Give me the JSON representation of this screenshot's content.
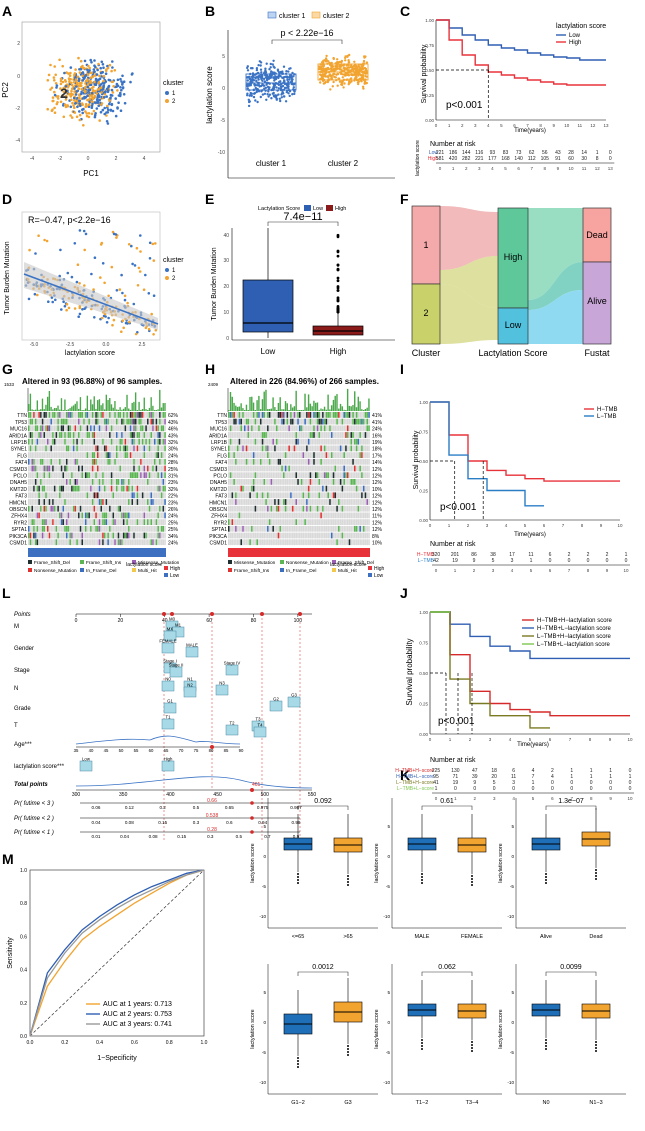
{
  "figure_title": "Lactylation score figure panels A–M",
  "panel_labels": [
    "A",
    "B",
    "C",
    "D",
    "E",
    "F",
    "G",
    "H",
    "I",
    "J",
    "K",
    "L",
    "M"
  ],
  "colors": {
    "c1": "#3b73c4",
    "c2": "#f2a431",
    "low": "#2f5fb3",
    "high": "#e8323a",
    "red": "#d62a2a",
    "dark_red": "#8b1a1a",
    "teal": "#2a9c8c",
    "olive": "#7a7a22",
    "green": "#7ec850",
    "purple": "#b48ac8",
    "pink": "#eda3a3"
  },
  "panelA": {
    "xlabel": "PC1",
    "ylabel": "PC2",
    "legend_title": "cluster",
    "legend": [
      "1",
      "2"
    ],
    "xticks": [
      "-4",
      "-2",
      "0",
      "2",
      "4"
    ],
    "yticks": [
      "2",
      "0",
      "-2",
      "-4"
    ],
    "center_label": "2"
  },
  "panelB": {
    "legend": [
      "cluster 1",
      "cluster 2"
    ],
    "pvalue": "p < 2.22e−16",
    "ylabel": "lactylation score",
    "categories": [
      "cluster 1",
      "cluster 2"
    ],
    "yticks": [
      "5",
      "0",
      "-5",
      "-10"
    ]
  },
  "panelC": {
    "legend_title": "lactylation score",
    "legend": [
      "Low",
      "High"
    ],
    "ylabel": "Survival probability",
    "xlabel": "Time(years)",
    "pvalue": "p<0.001",
    "risk_title": "Number at risk",
    "risk_ylabel": "lactylation score",
    "risk_rows": [
      [
        "Low",
        "221",
        "186",
        "144",
        "116",
        "93",
        "83",
        "73",
        "62",
        "56",
        "43",
        "28",
        "14",
        "1",
        "0"
      ],
      [
        "High",
        "581",
        "420",
        "282",
        "221",
        "177",
        "168",
        "140",
        "112",
        "105",
        "91",
        "60",
        "30",
        "8",
        "0"
      ]
    ],
    "xticks": [
      "0",
      "1",
      "2",
      "3",
      "4",
      "5",
      "6",
      "7",
      "8",
      "9",
      "10",
      "11",
      "12",
      "13"
    ]
  },
  "panelD": {
    "annotation": "R=−0.47, p<2.2e−16",
    "xlabel": "lactylation score",
    "ylabel": "Tumor Burden Mutation",
    "legend_title": "cluster",
    "legend": [
      "1",
      "2"
    ],
    "xticks": [
      "-5.0",
      "-2.5",
      "0.0",
      "2.5"
    ]
  },
  "panelE": {
    "legend_title": "Lactylation Score",
    "legend": [
      "Low",
      "High"
    ],
    "pvalue": "7.4e−11",
    "ylabel": "Tumor Burden Mutation",
    "categories": [
      "Low",
      "High"
    ],
    "yticks": [
      "40",
      "30",
      "20",
      "10",
      "0"
    ]
  },
  "panelF": {
    "axis_labels": [
      "Cluster",
      "Lactylation Score",
      "Fustat"
    ],
    "nodes": [
      "1",
      "2",
      "High",
      "Low",
      "Dead",
      "Alive"
    ]
  },
  "panelG": {
    "title": "Altered in 93 (96.88%) of 96 samples.",
    "top_value": "1533",
    "genes": [
      "TTN",
      "TP53",
      "MUC16",
      "ARID1A",
      "LRP1B",
      "SYNE1",
      "FLG",
      "FAT4",
      "CSMD3",
      "PCLO",
      "DNAH5",
      "KMT2D",
      "FAT3",
      "HMCN1",
      "OBSCN",
      "ZFHX4",
      "RYR2",
      "SPTA1",
      "PIK3CA",
      "CSMD1"
    ],
    "pcts": [
      "62%",
      "43%",
      "46%",
      "43%",
      "32%",
      "30%",
      "24%",
      "28%",
      "25%",
      "31%",
      "23%",
      "32%",
      "22%",
      "23%",
      "26%",
      "24%",
      "25%",
      "25%",
      "34%",
      "24%"
    ],
    "legend": [
      "Frame_Shift_Del",
      "Nonsense_Mutation",
      "Frame_Shift_Ins",
      "In_Frame_Del",
      "Missense_Mutation",
      "Multi_Hit"
    ],
    "score_legend": [
      "lactylation score",
      "High",
      "Low"
    ]
  },
  "panelH": {
    "title": "Altered in 226 (84.96%) of 266 samples.",
    "top_value": "2409",
    "genes": [
      "TTN",
      "TP53",
      "MUC16",
      "ARID1A",
      "LRP1B",
      "SYNE1",
      "FLG",
      "FAT4",
      "CSMD3",
      "PCLO",
      "DNAH5",
      "KMT2D",
      "FAT3",
      "HMCN1",
      "OBSCN",
      "ZFHX4",
      "RYR2",
      "SPTA1",
      "PIK3CA",
      "CSMD1"
    ],
    "pcts": [
      "41%",
      "41%",
      "24%",
      "16%",
      "19%",
      "18%",
      "17%",
      "14%",
      "12%",
      "12%",
      "12%",
      "10%",
      "12%",
      "12%",
      "12%",
      "11%",
      "12%",
      "12%",
      "8%",
      "10%"
    ],
    "legend": [
      "Missense_Mutation",
      "Frame_Shift_Ins",
      "Nonsense_Mutation",
      "In_Frame_Del",
      "Frame_Shift_Del",
      "Multi_Hit"
    ],
    "score_legend": [
      "lactylation score",
      "High",
      "Low"
    ]
  },
  "panelI": {
    "legend": [
      "H−TMB",
      "L−TMB"
    ],
    "pvalue": "p<0.001",
    "ylabel": "Survival probability",
    "xlabel": "Time(years)",
    "xticks": [
      "0",
      "1",
      "2",
      "3",
      "4",
      "5",
      "6",
      "7",
      "8",
      "9",
      "10"
    ],
    "risk_title": "Number at risk",
    "risk_rows": [
      [
        "H−TMB",
        "320",
        "201",
        "86",
        "38",
        "17",
        "11",
        "6",
        "2",
        "2",
        "2",
        "1"
      ],
      [
        "L−TMB",
        "42",
        "19",
        "9",
        "5",
        "3",
        "1",
        "0",
        "0",
        "0",
        "0",
        "0"
      ]
    ]
  },
  "panelJ": {
    "legend": [
      "H−TMB+H−lactylation score",
      "H−TMB+L−lactylation score",
      "L−TMB+H−lactylation score",
      "L−TMB+L−lactylation score"
    ],
    "pvalue": "p<0.001",
    "ylabel": "Survival probability",
    "xlabel": "Time(years)",
    "xticks": [
      "0",
      "1",
      "2",
      "3",
      "4",
      "5",
      "6",
      "7",
      "8",
      "9",
      "10"
    ],
    "risk_title": "Number at risk",
    "risk_rows": [
      [
        "H−TMB+H−score",
        "225",
        "130",
        "47",
        "18",
        "6",
        "4",
        "2",
        "1",
        "1",
        "1",
        "0"
      ],
      [
        "H−TMB+L−score",
        "95",
        "71",
        "39",
        "20",
        "11",
        "7",
        "4",
        "1",
        "1",
        "1",
        "1"
      ],
      [
        "L−TMB+H−score",
        "41",
        "19",
        "9",
        "5",
        "3",
        "1",
        "0",
        "0",
        "0",
        "0",
        "0"
      ],
      [
        "L−TMB+L−score",
        "1",
        "0",
        "0",
        "0",
        "0",
        "0",
        "0",
        "0",
        "0",
        "0",
        "0"
      ]
    ]
  },
  "panelL": {
    "rows": [
      "Points",
      "M",
      "Gender",
      "Stage",
      "N",
      "Grade",
      "T",
      "Age***",
      "lactylation score***",
      "Total points",
      "Pr( futime < 3 )",
      "Pr( futime < 2 )",
      "Pr( futime < 1 )"
    ],
    "points_ticks": [
      "0",
      "20",
      "40",
      "60",
      "80",
      "100"
    ],
    "total_ticks": [
      "300",
      "350",
      "400",
      "450",
      "500",
      "550"
    ],
    "total_value": "461",
    "pr3_ticks": [
      "0.06",
      "0.12",
      "0.2",
      "0.5",
      "0.65",
      "0.975",
      "0.987"
    ],
    "pr3_value": "0.66",
    "pr2_ticks": [
      "0.04",
      "0.08",
      "0.15",
      "0.3",
      "0.6",
      "0.94",
      "0.99"
    ],
    "pr2_value": "0.538",
    "pr1_ticks": [
      "0.01",
      "0.04",
      "0.08",
      "0.15",
      "0.3",
      "0.5",
      "0.7",
      "0.9"
    ],
    "pr1_value": "0.28",
    "box_labels": [
      "M0",
      "M1",
      "MX",
      "FEMALE",
      "MALE",
      "Stage I",
      "Stage II",
      "Stage IV",
      "N0",
      "N1",
      "N2",
      "N3",
      "G1",
      "G2",
      "G3",
      "T1",
      "T2",
      "T3",
      "T4",
      "Low",
      "High"
    ],
    "age_ticks": [
      "35",
      "40",
      "45",
      "50",
      "55",
      "60",
      "65",
      "70",
      "75",
      "80",
      "85",
      "90"
    ]
  },
  "panelM": {
    "xlabel": "1−Specificity",
    "ylabel": "Sensitivity",
    "legend": [
      "AUC at 1 years: 0.713",
      "AUC at 2 years: 0.753",
      "AUC at 3 years: 0.741"
    ],
    "ticks": [
      "0.0",
      "0.2",
      "0.4",
      "0.6",
      "0.8",
      "1.0"
    ]
  },
  "panelK": {
    "ylabel": "lactylation score",
    "plots": [
      {
        "p": "0.092",
        "cats": [
          "<=65",
          ">65"
        ]
      },
      {
        "p": "0.61",
        "cats": [
          "MALE",
          "FEMALE"
        ]
      },
      {
        "p": "1.3e−07",
        "cats": [
          "Alive",
          "Dead"
        ]
      },
      {
        "p": "0.0012",
        "cats": [
          "G1−2",
          "G3"
        ]
      },
      {
        "p": "0.062",
        "cats": [
          "T1−2",
          "T3−4"
        ]
      },
      {
        "p": "0.0099",
        "cats": [
          "N0",
          "N1−3"
        ]
      }
    ],
    "yticks": [
      "5",
      "0",
      "-5",
      "-10"
    ]
  },
  "chart_data": [
    {
      "panel": "C",
      "type": "line",
      "title": "Kaplan-Meier: lactylation score",
      "series": [
        {
          "name": "Low",
          "x": [
            0,
            1,
            2,
            3,
            4,
            5,
            6,
            7,
            8,
            9,
            10,
            11,
            12,
            13
          ],
          "y": [
            1.0,
            0.92,
            0.85,
            0.8,
            0.75,
            0.72,
            0.7,
            0.67,
            0.65,
            0.63,
            0.62,
            0.6,
            0.6,
            0.6
          ]
        },
        {
          "name": "High",
          "x": [
            0,
            1,
            2,
            3,
            4,
            5,
            6,
            7,
            8,
            9,
            10,
            11,
            12,
            13
          ],
          "y": [
            1.0,
            0.8,
            0.65,
            0.55,
            0.48,
            0.45,
            0.42,
            0.4,
            0.38,
            0.36,
            0.35,
            0.35,
            0.35,
            0.35
          ]
        }
      ],
      "xlabel": "Time(years)",
      "ylabel": "Survival probability",
      "ylim": [
        0,
        1
      ]
    },
    {
      "panel": "I",
      "type": "line",
      "title": "Kaplan-Meier: TMB",
      "series": [
        {
          "name": "H−TMB",
          "x": [
            0,
            1,
            2,
            3,
            4,
            5,
            6,
            7,
            8,
            9,
            10
          ],
          "y": [
            1.0,
            0.72,
            0.5,
            0.42,
            0.38,
            0.35,
            0.33,
            0.33,
            0.33,
            0.33,
            0.33
          ]
        },
        {
          "name": "L−TMB",
          "x": [
            0,
            1,
            2,
            3,
            4,
            5,
            6
          ],
          "y": [
            1.0,
            0.55,
            0.35,
            0.25,
            0.25,
            0.12,
            0.12
          ]
        }
      ],
      "xlabel": "Time(years)",
      "ylabel": "Survival probability",
      "ylim": [
        0,
        1
      ]
    },
    {
      "panel": "J",
      "type": "line",
      "title": "Kaplan-Meier: TMB + lactylation score",
      "series": [
        {
          "name": "H−TMB+H−lactylation score",
          "x": [
            0,
            1,
            2,
            3,
            4,
            5,
            6,
            7,
            8,
            9,
            10
          ],
          "y": [
            1.0,
            0.65,
            0.35,
            0.25,
            0.2,
            0.18,
            0.15,
            0.15,
            0.15,
            0.15,
            0.15
          ]
        },
        {
          "name": "H−TMB+L−lactylation score",
          "x": [
            0,
            1,
            2,
            3,
            4,
            5,
            6,
            7,
            8,
            9,
            10
          ],
          "y": [
            1.0,
            0.9,
            0.8,
            0.72,
            0.68,
            0.62,
            0.62,
            0.62,
            0.62,
            0.62,
            0.62
          ]
        },
        {
          "name": "L−TMB+H−lactylation score",
          "x": [
            0,
            1,
            2,
            3,
            4,
            5,
            6
          ],
          "y": [
            1.0,
            0.45,
            0.25,
            0.15,
            0.15,
            0.05,
            0.05
          ]
        },
        {
          "name": "L−TMB+L−lactylation score",
          "x": [
            0,
            1
          ],
          "y": [
            1.0,
            1.0
          ]
        }
      ],
      "xlabel": "Time(years)",
      "ylabel": "Survival probability",
      "ylim": [
        0,
        1
      ]
    },
    {
      "panel": "M",
      "type": "line",
      "title": "Time-dependent ROC",
      "series": [
        {
          "name": "AUC at 1 years: 0.713",
          "x": [
            0,
            0.1,
            0.2,
            0.3,
            0.4,
            0.5,
            0.6,
            0.7,
            0.8,
            0.9,
            1.0
          ],
          "y": [
            0,
            0.3,
            0.45,
            0.58,
            0.66,
            0.73,
            0.8,
            0.86,
            0.92,
            0.97,
            1.0
          ]
        },
        {
          "name": "AUC at 2 years: 0.753",
          "x": [
            0,
            0.1,
            0.2,
            0.3,
            0.4,
            0.5,
            0.6,
            0.7,
            0.8,
            0.9,
            1.0
          ],
          "y": [
            0,
            0.38,
            0.52,
            0.64,
            0.72,
            0.79,
            0.85,
            0.9,
            0.94,
            0.98,
            1.0
          ]
        },
        {
          "name": "AUC at 3 years: 0.741",
          "x": [
            0,
            0.1,
            0.2,
            0.3,
            0.4,
            0.5,
            0.6,
            0.7,
            0.8,
            0.9,
            1.0
          ],
          "y": [
            0,
            0.35,
            0.5,
            0.62,
            0.7,
            0.77,
            0.83,
            0.88,
            0.93,
            0.97,
            1.0
          ]
        }
      ],
      "xlabel": "1−Specificity",
      "ylabel": "Sensitivity",
      "ylim": [
        0,
        1
      ]
    }
  ]
}
